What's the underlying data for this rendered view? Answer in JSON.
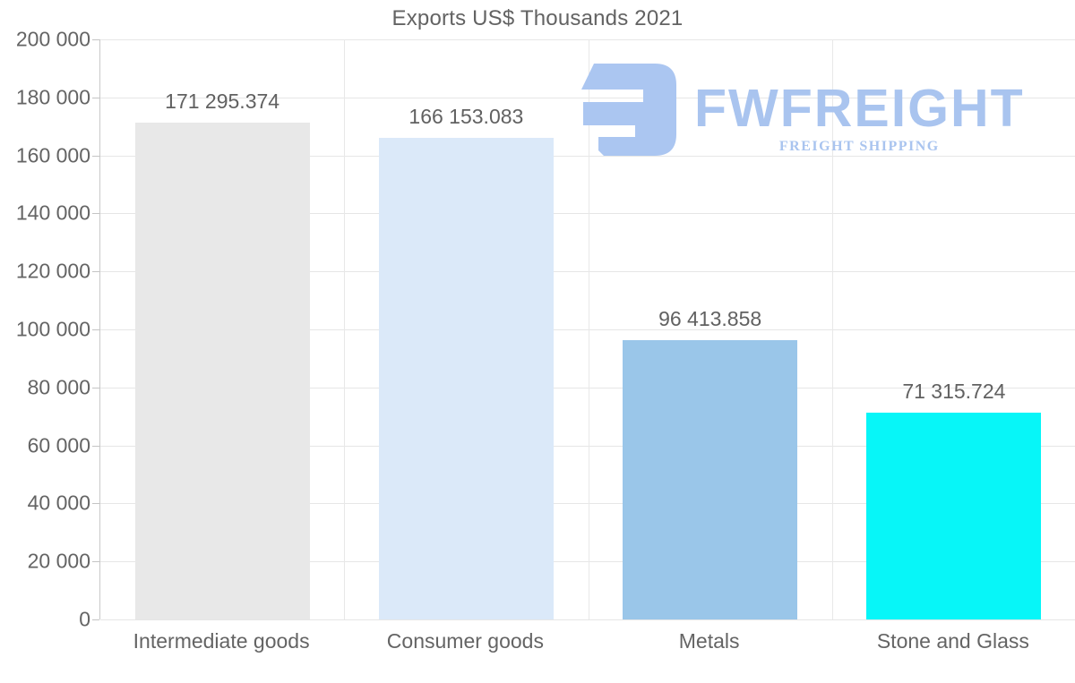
{
  "chart_data": {
    "type": "bar",
    "title": "Exports US$ Thousands 2021",
    "categories": [
      "Intermediate goods",
      "Consumer goods",
      "Metals",
      "Stone and Glass"
    ],
    "values": [
      171295.374,
      166153.083,
      96413.858,
      71315.724
    ],
    "value_labels": [
      "171 295.374",
      "166 153.083",
      "96 413.858",
      "71 315.724"
    ],
    "bar_colors": [
      "#e8e8e8",
      "#dbe9f9",
      "#9ac6e9",
      "#07f6f8"
    ],
    "y_ticks": [
      "200 000",
      "180 000",
      "160 000",
      "140 000",
      "120 000",
      "100 000",
      "80 000",
      "60 000",
      "40 000",
      "20 000",
      "0"
    ],
    "ylim": [
      0,
      200000
    ],
    "xlabel": "",
    "ylabel": "",
    "grid": true,
    "legend_position": "none"
  },
  "watermark": {
    "brand": "FWFREIGHT",
    "tagline": "FREIGHT SHIPPING",
    "color": "#a9c4ef",
    "icon": "fwfreight-logo-icon"
  },
  "colors": {
    "text": "#646464",
    "gridline": "#e6e6e6",
    "axis": "#c9c9c9",
    "background": "#ffffff"
  }
}
